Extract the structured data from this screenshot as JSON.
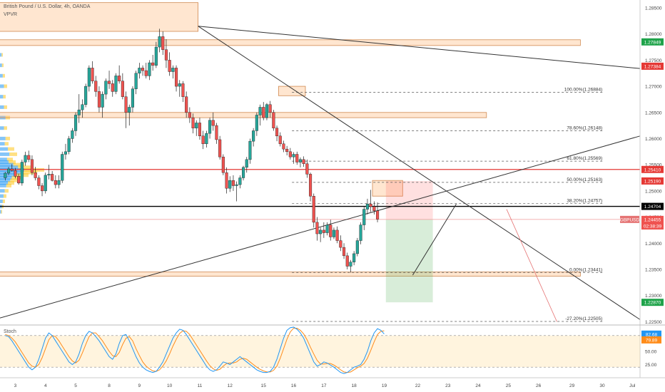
{
  "header": {
    "title": "British Pound / U.S. Dollar, 4h, OANDA",
    "indicator": "VPVR",
    "stoch_label": "Stoch"
  },
  "chart_data": {
    "type": "candlestick",
    "symbol": "GBPUSD",
    "timeframe": "4h",
    "price_axis": {
      "ylim": [
        1.2245,
        1.2865
      ],
      "ticks": [
        "1.28500",
        "1.28000",
        "1.27500",
        "1.27000",
        "1.26500",
        "1.26000",
        "1.25500",
        "1.25000",
        "1.24500",
        "1.24000",
        "1.23500",
        "1.23000",
        "1.22500"
      ]
    },
    "time_axis": {
      "labels": [
        "3",
        "4",
        "5",
        "8",
        "9",
        "10",
        "11",
        "12",
        "15",
        "16",
        "17",
        "18",
        "19",
        "22",
        "23",
        "24",
        "25",
        "26",
        "29",
        "30",
        "Jul"
      ],
      "label_bars": [
        3,
        12,
        21,
        31,
        40,
        49,
        58,
        67,
        77,
        86,
        95,
        104,
        113,
        123,
        132,
        141,
        150,
        159,
        169,
        178,
        187
      ]
    },
    "candles": [
      [
        1.2525,
        1.2536,
        1.252,
        1.2534
      ],
      [
        1.2534,
        1.2546,
        1.253,
        1.2542
      ],
      [
        1.2542,
        1.2551,
        1.2537,
        1.2539
      ],
      [
        1.2539,
        1.2544,
        1.2524,
        1.2528
      ],
      [
        1.2528,
        1.2533,
        1.2512,
        1.2515
      ],
      [
        1.2515,
        1.256,
        1.251,
        1.2555
      ],
      [
        1.2555,
        1.2575,
        1.2548,
        1.2568
      ],
      [
        1.2568,
        1.2577,
        1.2555,
        1.256
      ],
      [
        1.256,
        1.2568,
        1.253,
        1.2535
      ],
      [
        1.2535,
        1.2546,
        1.252,
        1.2525
      ],
      [
        1.2525,
        1.253,
        1.2503,
        1.251
      ],
      [
        1.251,
        1.2515,
        1.249,
        1.25
      ],
      [
        1.25,
        1.2535,
        1.2495,
        1.253
      ],
      [
        1.253,
        1.255,
        1.2522,
        1.2532
      ],
      [
        1.2532,
        1.2538,
        1.2518,
        1.252
      ],
      [
        1.252,
        1.253,
        1.2505,
        1.2512
      ],
      [
        1.2512,
        1.253,
        1.2505,
        1.252
      ],
      [
        1.252,
        1.2575,
        1.2515,
        1.257
      ],
      [
        1.257,
        1.259,
        1.256,
        1.2575
      ],
      [
        1.2575,
        1.2605,
        1.257,
        1.26
      ],
      [
        1.26,
        1.262,
        1.2592,
        1.2615
      ],
      [
        1.2615,
        1.265,
        1.2605,
        1.2645
      ],
      [
        1.2645,
        1.2685,
        1.263,
        1.2655
      ],
      [
        1.2655,
        1.2675,
        1.264,
        1.2665
      ],
      [
        1.2665,
        1.2705,
        1.266,
        1.27
      ],
      [
        1.27,
        1.274,
        1.269,
        1.2735
      ],
      [
        1.2735,
        1.2748,
        1.2705,
        1.271
      ],
      [
        1.271,
        1.272,
        1.268,
        1.269
      ],
      [
        1.269,
        1.27,
        1.265,
        1.266
      ],
      [
        1.266,
        1.269,
        1.264,
        1.2685
      ],
      [
        1.2685,
        1.2715,
        1.2675,
        1.271
      ],
      [
        1.271,
        1.273,
        1.2695,
        1.2705
      ],
      [
        1.2705,
        1.2712,
        1.268,
        1.269
      ],
      [
        1.269,
        1.2725,
        1.2685,
        1.272
      ],
      [
        1.272,
        1.274,
        1.2705,
        1.271
      ],
      [
        1.271,
        1.2725,
        1.2675,
        1.268
      ],
      [
        1.268,
        1.269,
        1.262,
        1.265
      ],
      [
        1.265,
        1.2665,
        1.2625,
        1.266
      ],
      [
        1.266,
        1.27,
        1.265,
        1.2695
      ],
      [
        1.2695,
        1.273,
        1.2685,
        1.2725
      ],
      [
        1.2725,
        1.2745,
        1.2715,
        1.2735
      ],
      [
        1.2735,
        1.274,
        1.272,
        1.273
      ],
      [
        1.273,
        1.2745,
        1.2715,
        1.272
      ],
      [
        1.272,
        1.275,
        1.2712,
        1.2745
      ],
      [
        1.2745,
        1.276,
        1.273,
        1.274
      ],
      [
        1.274,
        1.2785,
        1.2735,
        1.2775
      ],
      [
        1.2775,
        1.281,
        1.2765,
        1.2795
      ],
      [
        1.2795,
        1.2805,
        1.276,
        1.277
      ],
      [
        1.277,
        1.279,
        1.2735,
        1.275
      ],
      [
        1.275,
        1.2765,
        1.272,
        1.2728
      ],
      [
        1.2728,
        1.274,
        1.2715,
        1.2735
      ],
      [
        1.2735,
        1.274,
        1.269,
        1.27
      ],
      [
        1.27,
        1.2712,
        1.268,
        1.2705
      ],
      [
        1.2705,
        1.271,
        1.267,
        1.268
      ],
      [
        1.268,
        1.269,
        1.264,
        1.265
      ],
      [
        1.265,
        1.266,
        1.263,
        1.264
      ],
      [
        1.264,
        1.2648,
        1.261,
        1.262
      ],
      [
        1.262,
        1.2635,
        1.2605,
        1.263
      ],
      [
        1.263,
        1.264,
        1.2598,
        1.2605
      ],
      [
        1.2605,
        1.2615,
        1.258,
        1.259
      ],
      [
        1.259,
        1.2615,
        1.2583,
        1.261
      ],
      [
        1.261,
        1.264,
        1.26,
        1.2635
      ],
      [
        1.2635,
        1.265,
        1.2615,
        1.2625
      ],
      [
        1.2625,
        1.263,
        1.259,
        1.2598
      ],
      [
        1.2598,
        1.2605,
        1.256,
        1.2565
      ],
      [
        1.2565,
        1.257,
        1.253,
        1.2535
      ],
      [
        1.2535,
        1.2545,
        1.2495,
        1.2505
      ],
      [
        1.2505,
        1.2528,
        1.2498,
        1.252
      ],
      [
        1.252,
        1.253,
        1.25,
        1.251
      ],
      [
        1.251,
        1.2518,
        1.248,
        1.2512
      ],
      [
        1.2512,
        1.253,
        1.2505,
        1.2525
      ],
      [
        1.2525,
        1.2548,
        1.252,
        1.2545
      ],
      [
        1.2545,
        1.2565,
        1.2535,
        1.256
      ],
      [
        1.256,
        1.26,
        1.2552,
        1.2595
      ],
      [
        1.2595,
        1.262,
        1.2585,
        1.2615
      ],
      [
        1.2615,
        1.265,
        1.2605,
        1.2645
      ],
      [
        1.2645,
        1.2665,
        1.2625,
        1.266
      ],
      [
        1.266,
        1.267,
        1.2635,
        1.264
      ],
      [
        1.264,
        1.2668,
        1.2635,
        1.2665
      ],
      [
        1.2665,
        1.2672,
        1.264,
        1.265
      ],
      [
        1.265,
        1.2655,
        1.2615,
        1.262
      ],
      [
        1.262,
        1.2625,
        1.2595,
        1.2605
      ],
      [
        1.2605,
        1.2612,
        1.2585,
        1.259
      ],
      [
        1.259,
        1.2596,
        1.2574,
        1.258
      ],
      [
        1.258,
        1.2586,
        1.2568,
        1.2575
      ],
      [
        1.2575,
        1.2582,
        1.256,
        1.2565
      ],
      [
        1.2565,
        1.2574,
        1.2552,
        1.257
      ],
      [
        1.257,
        1.2575,
        1.255,
        1.2555
      ],
      [
        1.2555,
        1.2564,
        1.2545,
        1.256
      ],
      [
        1.256,
        1.2566,
        1.2546,
        1.2552
      ],
      [
        1.2552,
        1.256,
        1.2525,
        1.2532
      ],
      [
        1.2532,
        1.2535,
        1.248,
        1.249
      ],
      [
        1.249,
        1.2495,
        1.243,
        1.244
      ],
      [
        1.244,
        1.245,
        1.2405,
        1.2418
      ],
      [
        1.2418,
        1.243,
        1.2402,
        1.2425
      ],
      [
        1.2425,
        1.244,
        1.241,
        1.242
      ],
      [
        1.242,
        1.244,
        1.2415,
        1.2435
      ],
      [
        1.2435,
        1.2445,
        1.2405,
        1.2412
      ],
      [
        1.2412,
        1.243,
        1.2408,
        1.2425
      ],
      [
        1.2425,
        1.2432,
        1.24,
        1.2405
      ],
      [
        1.2405,
        1.2415,
        1.2385,
        1.2392
      ],
      [
        1.2392,
        1.24,
        1.237,
        1.2376
      ],
      [
        1.2376,
        1.2382,
        1.235,
        1.2356
      ],
      [
        1.2356,
        1.2368,
        1.2344,
        1.2364
      ],
      [
        1.2364,
        1.2385,
        1.2358,
        1.238
      ],
      [
        1.238,
        1.241,
        1.2375,
        1.2405
      ],
      [
        1.2405,
        1.244,
        1.2398,
        1.2435
      ],
      [
        1.2435,
        1.247,
        1.2425,
        1.2465
      ],
      [
        1.2465,
        1.2485,
        1.2455,
        1.2475
      ],
      [
        1.2475,
        1.2502,
        1.246,
        1.247
      ],
      [
        1.247,
        1.248,
        1.2455,
        1.2462
      ],
      [
        1.2462,
        1.2478,
        1.244,
        1.2446
      ]
    ],
    "horizontal_levels": [
      {
        "price": 1.2541,
        "color": "#e53935"
      },
      {
        "price": 1.24704,
        "color": "#000000"
      },
      {
        "price": 1.24455,
        "color": "#ef9a9a"
      }
    ],
    "price_tags": [
      {
        "label": "1.28500",
        "price": 1.285,
        "kind": "tick"
      },
      {
        "label": "1.27849",
        "price": 1.27849,
        "color": "#1fa34a"
      },
      {
        "label": "1.27384",
        "price": 1.27384,
        "color": "#e53935"
      },
      {
        "label": "1.25410",
        "price": 1.2541,
        "color": "#e53935"
      },
      {
        "label": "1.25190",
        "price": 1.2519,
        "color": "#e53935"
      },
      {
        "label": "1.24704",
        "price": 1.24704,
        "color": "#000000"
      },
      {
        "label": "GBPUSD",
        "price": 1.24455,
        "color": "#e57373",
        "side": "left"
      },
      {
        "label": "1.24455",
        "price": 1.24455,
        "color": "#ef5350"
      },
      {
        "label": "02:38:39",
        "price": 1.2433,
        "color": "#ef5350"
      },
      {
        "label": "1.22870",
        "price": 1.2287,
        "color": "#1fa34a"
      }
    ],
    "fib_levels": [
      {
        "label": "100.00%(1.26884)",
        "price": 1.26884
      },
      {
        "label": "78.60%(1.26148)",
        "price": 1.26148
      },
      {
        "label": "61.80%(1.25569)",
        "price": 1.25569
      },
      {
        "label": "50.00%(1.25163)",
        "price": 1.25163
      },
      {
        "label": "38.20%(1.24757)",
        "price": 1.24757
      },
      {
        "label": "0.00%(1.23441)",
        "price": 1.23441
      },
      {
        "label": "-27.20%(1.22505)",
        "price": 1.22505
      }
    ],
    "zones": [
      {
        "from_bar": -9,
        "to_bar": 58,
        "top": 1.286,
        "bottom": 1.2805
      },
      {
        "from_bar": -16,
        "to_bar": 172,
        "top": 1.2789,
        "bottom": 1.2778
      },
      {
        "from_bar": -16,
        "to_bar": 144,
        "top": 1.265,
        "bottom": 1.264
      },
      {
        "from_bar": 82,
        "to_bar": 90,
        "top": 1.27,
        "bottom": 1.2682
      },
      {
        "from_bar": -16,
        "to_bar": 172,
        "top": 1.2345,
        "bottom": 1.2337
      },
      {
        "from_bar": 110,
        "to_bar": 119,
        "top": 1.252,
        "bottom": 1.249
      }
    ],
    "trade": {
      "from_bar": 114,
      "to_bar": 128,
      "entry": 1.24455,
      "stop": 1.2519,
      "target": 1.2287
    },
    "stochastic": {
      "ylim": [
        0,
        100
      ],
      "ticks": [
        "82.68",
        "79.89",
        "50.00",
        "25.00"
      ],
      "k": [
        80,
        78,
        70,
        60,
        50,
        40,
        30,
        20,
        15,
        20,
        35,
        55,
        75,
        85,
        80,
        70,
        60,
        50,
        40,
        30,
        25,
        30,
        45,
        65,
        80,
        88,
        85,
        78,
        70,
        60,
        50,
        40,
        35,
        45,
        65,
        80,
        82,
        70,
        55,
        40,
        28,
        20,
        15,
        12,
        10,
        12,
        20,
        30,
        45,
        60,
        75,
        85,
        92,
        90,
        82,
        72,
        62,
        52,
        42,
        32,
        22,
        15,
        12,
        15,
        22,
        30,
        28,
        25,
        30,
        35,
        40,
        35,
        30,
        25,
        20,
        15,
        12,
        10,
        10,
        12,
        20,
        35,
        55,
        75,
        90,
        95,
        96,
        92,
        85,
        75,
        60,
        45,
        30,
        22,
        25,
        30,
        28,
        24,
        20,
        15,
        10,
        8,
        10,
        15,
        20,
        22,
        25,
        35,
        50,
        70,
        85,
        93,
        90,
        83
      ],
      "d": [
        82,
        80,
        75,
        68,
        58,
        48,
        38,
        28,
        22,
        20,
        25,
        38,
        55,
        72,
        80,
        78,
        70,
        60,
        50,
        40,
        32,
        28,
        33,
        47,
        63,
        78,
        85,
        85,
        78,
        70,
        60,
        50,
        42,
        40,
        48,
        63,
        75,
        78,
        70,
        55,
        42,
        30,
        22,
        17,
        13,
        12,
        15,
        22,
        32,
        45,
        60,
        73,
        84,
        89,
        88,
        82,
        72,
        62,
        52,
        42,
        32,
        23,
        17,
        14,
        16,
        22,
        27,
        28,
        28,
        30,
        35,
        37,
        35,
        30,
        25,
        20,
        16,
        13,
        11,
        11,
        14,
        22,
        37,
        55,
        73,
        87,
        94,
        94,
        90,
        83,
        72,
        58,
        45,
        33,
        26,
        26,
        27,
        27,
        24,
        20,
        15,
        11,
        10,
        11,
        15,
        19,
        22,
        27,
        37,
        52,
        68,
        82,
        88,
        89
      ]
    }
  }
}
